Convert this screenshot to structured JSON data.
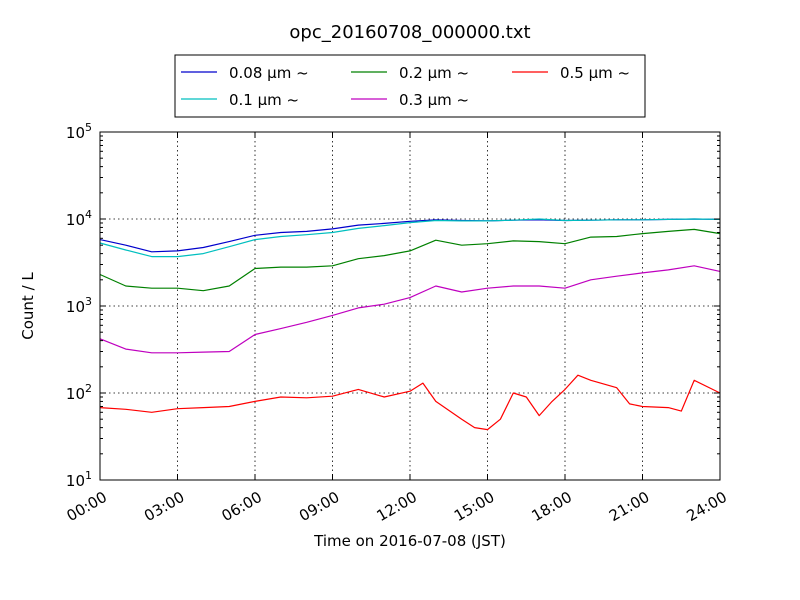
{
  "chart_data": {
    "type": "line",
    "title": "opc_20160708_000000.txt",
    "xlabel": "Time on 2016-07-08 (JST)",
    "ylabel": "Count / L",
    "x_unit": "hours",
    "xlim": [
      0,
      24
    ],
    "ylim": [
      10,
      100000
    ],
    "yscale": "log",
    "grid": true,
    "legend_position": "top-center, above plot",
    "x_ticks": [
      {
        "v": 0,
        "label": "00:00"
      },
      {
        "v": 3,
        "label": "03:00"
      },
      {
        "v": 6,
        "label": "06:00"
      },
      {
        "v": 9,
        "label": "09:00"
      },
      {
        "v": 12,
        "label": "12:00"
      },
      {
        "v": 15,
        "label": "15:00"
      },
      {
        "v": 18,
        "label": "18:00"
      },
      {
        "v": 21,
        "label": "21:00"
      },
      {
        "v": 24,
        "label": "24:00"
      }
    ],
    "y_ticks": [
      {
        "v": 10,
        "base": "10",
        "exp": "1"
      },
      {
        "v": 100,
        "base": "10",
        "exp": "2"
      },
      {
        "v": 1000,
        "base": "10",
        "exp": "3"
      },
      {
        "v": 10000,
        "base": "10",
        "exp": "4"
      },
      {
        "v": 100000,
        "base": "10",
        "exp": "5"
      }
    ],
    "series": [
      {
        "name": "0.08 μm ~",
        "color": "#0000cc",
        "points": [
          [
            0,
            5800
          ],
          [
            1,
            5000
          ],
          [
            2,
            4200
          ],
          [
            3,
            4300
          ],
          [
            4,
            4700
          ],
          [
            5,
            5500
          ],
          [
            6,
            6500
          ],
          [
            7,
            7000
          ],
          [
            8,
            7200
          ],
          [
            9,
            7700
          ],
          [
            10,
            8500
          ],
          [
            11,
            8900
          ],
          [
            12,
            9400
          ],
          [
            13,
            9800
          ],
          [
            14,
            9600
          ],
          [
            15,
            9500
          ],
          [
            16,
            9700
          ],
          [
            17,
            9800
          ],
          [
            18,
            9600
          ],
          [
            19,
            9700
          ],
          [
            20,
            9800
          ],
          [
            21,
            9800
          ],
          [
            22,
            9900
          ],
          [
            23,
            10000
          ],
          [
            24,
            9900
          ]
        ]
      },
      {
        "name": "0.1 μm ~",
        "color": "#00bfbf",
        "points": [
          [
            0,
            5300
          ],
          [
            1,
            4400
          ],
          [
            2,
            3700
          ],
          [
            3,
            3700
          ],
          [
            4,
            4000
          ],
          [
            5,
            4800
          ],
          [
            6,
            5800
          ],
          [
            7,
            6300
          ],
          [
            8,
            6600
          ],
          [
            9,
            7000
          ],
          [
            10,
            7800
          ],
          [
            11,
            8400
          ],
          [
            12,
            9100
          ],
          [
            13,
            9600
          ],
          [
            14,
            9500
          ],
          [
            15,
            9500
          ],
          [
            16,
            9700
          ],
          [
            17,
            10000
          ],
          [
            18,
            9600
          ],
          [
            19,
            9700
          ],
          [
            20,
            9800
          ],
          [
            21,
            9800
          ],
          [
            22,
            9900
          ],
          [
            23,
            10000
          ],
          [
            24,
            9900
          ]
        ]
      },
      {
        "name": "0.2 μm ~",
        "color": "#008000",
        "points": [
          [
            0,
            2300
          ],
          [
            1,
            1700
          ],
          [
            2,
            1600
          ],
          [
            3,
            1600
          ],
          [
            4,
            1500
          ],
          [
            5,
            1700
          ],
          [
            6,
            2700
          ],
          [
            7,
            2800
          ],
          [
            8,
            2800
          ],
          [
            9,
            2900
          ],
          [
            10,
            3500
          ],
          [
            11,
            3800
          ],
          [
            12,
            4300
          ],
          [
            13,
            5700
          ],
          [
            14,
            5000
          ],
          [
            15,
            5200
          ],
          [
            16,
            5600
          ],
          [
            17,
            5500
          ],
          [
            18,
            5200
          ],
          [
            19,
            6200
          ],
          [
            20,
            6300
          ],
          [
            21,
            6800
          ],
          [
            22,
            7200
          ],
          [
            23,
            7600
          ],
          [
            24,
            6800
          ]
        ]
      },
      {
        "name": "0.3 μm ~",
        "color": "#bf00bf",
        "points": [
          [
            0,
            420
          ],
          [
            1,
            320
          ],
          [
            2,
            290
          ],
          [
            3,
            290
          ],
          [
            4,
            295
          ],
          [
            5,
            300
          ],
          [
            6,
            470
          ],
          [
            7,
            550
          ],
          [
            8,
            650
          ],
          [
            9,
            780
          ],
          [
            10,
            950
          ],
          [
            11,
            1050
          ],
          [
            12,
            1250
          ],
          [
            13,
            1700
          ],
          [
            14,
            1450
          ],
          [
            15,
            1600
          ],
          [
            16,
            1700
          ],
          [
            17,
            1700
          ],
          [
            18,
            1600
          ],
          [
            19,
            2000
          ],
          [
            20,
            2200
          ],
          [
            21,
            2400
          ],
          [
            22,
            2600
          ],
          [
            23,
            2900
          ],
          [
            24,
            2500
          ]
        ]
      },
      {
        "name": "0.5 μm ~",
        "color": "#ff0000",
        "points": [
          [
            0,
            68
          ],
          [
            1,
            65
          ],
          [
            2,
            60
          ],
          [
            3,
            66
          ],
          [
            4,
            68
          ],
          [
            5,
            70
          ],
          [
            6,
            80
          ],
          [
            7,
            90
          ],
          [
            8,
            88
          ],
          [
            9,
            92
          ],
          [
            10,
            110
          ],
          [
            11,
            90
          ],
          [
            12,
            105
          ],
          [
            12.5,
            130
          ],
          [
            13,
            80
          ],
          [
            14,
            50
          ],
          [
            14.5,
            40
          ],
          [
            15,
            38
          ],
          [
            15.5,
            50
          ],
          [
            16,
            100
          ],
          [
            16.5,
            90
          ],
          [
            17,
            55
          ],
          [
            17.5,
            80
          ],
          [
            18,
            110
          ],
          [
            18.5,
            160
          ],
          [
            19,
            140
          ],
          [
            20,
            115
          ],
          [
            20.5,
            75
          ],
          [
            21,
            70
          ],
          [
            22,
            68
          ],
          [
            22.5,
            62
          ],
          [
            23,
            140
          ],
          [
            24,
            100
          ]
        ]
      }
    ]
  }
}
